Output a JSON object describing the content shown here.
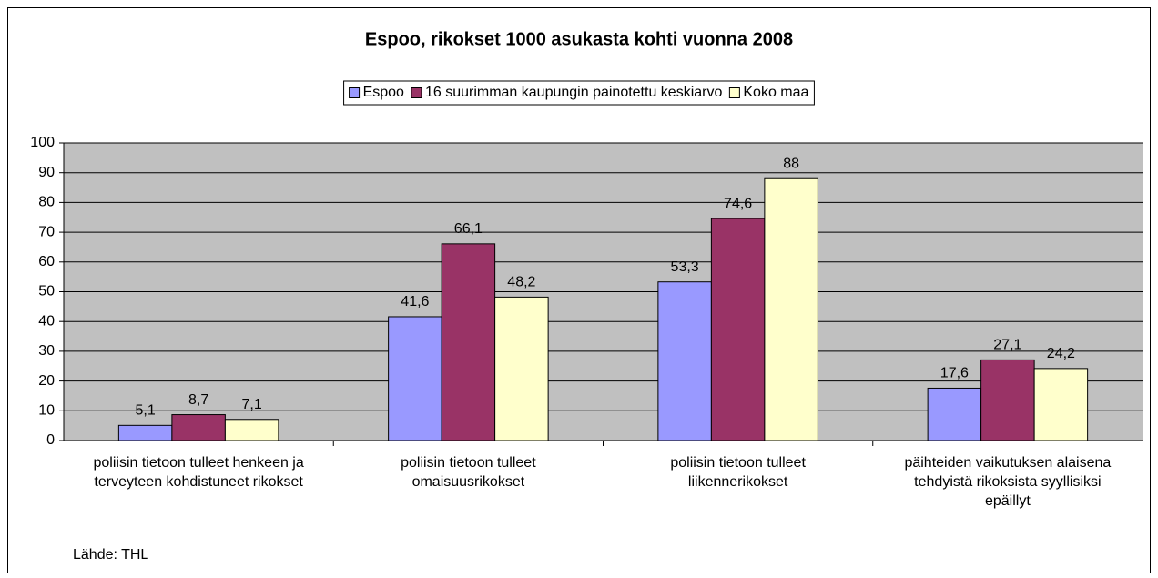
{
  "chart_data": {
    "type": "bar",
    "title": "Espoo, rikokset 1000 asukasta kohti vuonna 2008",
    "categories": [
      "poliisin tietoon tulleet henkeen ja terveyteen kohdistuneet rikokset",
      "poliisin tietoon tulleet omaisuusrikokset",
      "poliisin tietoon tulleet liikennerikokset",
      "päihteiden vaikutuksen alaisena tehdyistä rikoksista syyllisiksi epäillyt"
    ],
    "series": [
      {
        "name": "Espoo",
        "color": "#9999ff",
        "values": [
          5.1,
          41.6,
          53.3,
          17.6
        ],
        "value_labels": [
          "5,1",
          "41,6",
          "53,3",
          "17,6"
        ]
      },
      {
        "name": "16 suurimman kaupungin painotettu keskiarvo",
        "color": "#993366",
        "values": [
          8.7,
          66.1,
          74.6,
          27.1
        ],
        "value_labels": [
          "8,7",
          "66,1",
          "74,6",
          "27,1"
        ]
      },
      {
        "name": "Koko maa",
        "color": "#ffffcc",
        "values": [
          7.1,
          48.2,
          88,
          24.2
        ],
        "value_labels": [
          "7,1",
          "48,2",
          "88",
          "24,2"
        ]
      }
    ],
    "ylim": [
      0,
      100
    ],
    "yticks": [
      0,
      10,
      20,
      30,
      40,
      50,
      60,
      70,
      80,
      90,
      100
    ],
    "grid": true,
    "legend": "top",
    "source": "Lähde: THL"
  }
}
